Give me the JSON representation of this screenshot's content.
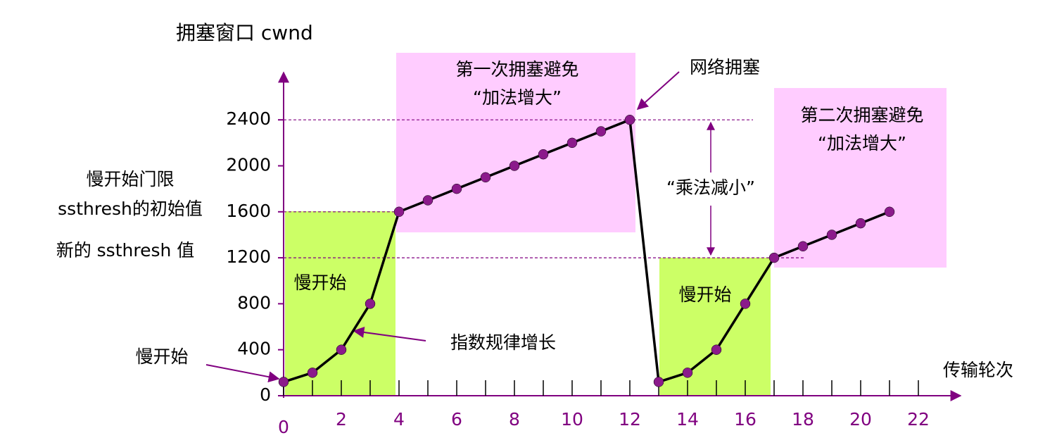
{
  "chart_data": {
    "type": "line",
    "title": "拥塞窗口 cwnd",
    "x_label": "传输轮次",
    "x": [
      0,
      1,
      2,
      3,
      4,
      5,
      6,
      7,
      8,
      9,
      10,
      11,
      12,
      13,
      14,
      15,
      16,
      17,
      18,
      19,
      20,
      21
    ],
    "series": [
      {
        "color": "#000000",
        "marker_color": "#8b1a8b",
        "values": [
          120,
          200,
          400,
          800,
          1600,
          1700,
          1800,
          1900,
          2000,
          2100,
          2200,
          2300,
          2400,
          120,
          200,
          400,
          800,
          1200,
          1300,
          1400,
          1500,
          1600
        ]
      }
    ],
    "xlim": [
      0,
      23.5
    ],
    "ylim": [
      0,
      2800
    ],
    "xticks": [
      0,
      2,
      4,
      6,
      8,
      10,
      12,
      14,
      16,
      18,
      20,
      22
    ],
    "yticks": [
      0,
      400,
      800,
      1200,
      1600,
      2000,
      2400
    ],
    "reference_lines": [
      2400,
      1600,
      1200
    ],
    "annotations": [
      "第一次拥塞避免",
      "“加法增大”",
      "网络拥塞",
      "第二次拥塞避免",
      "“加法增大”",
      "“乘法减小”",
      "慢开始门限",
      "ssthresh的初始值",
      "新的 ssthresh 值",
      "慢开始",
      "慢开始",
      "慢开始",
      "指数规律增长"
    ]
  }
}
